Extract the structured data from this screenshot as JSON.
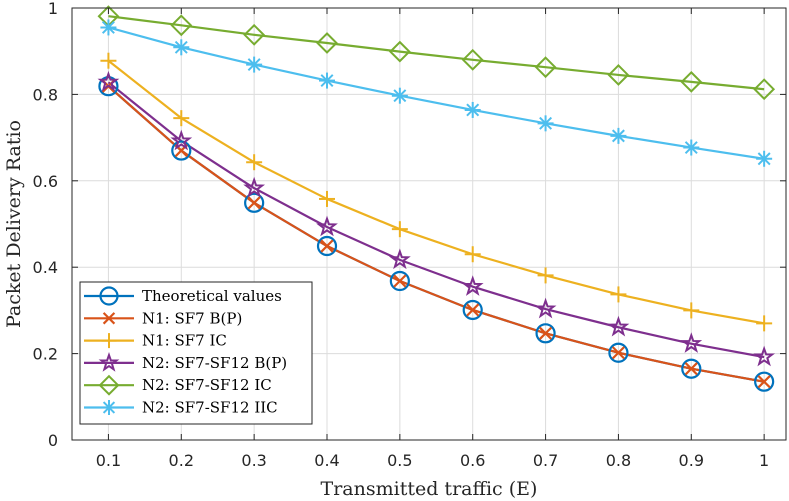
{
  "chart_data": {
    "type": "line",
    "title": "",
    "xlabel": "Transmitted traffic (E)",
    "ylabel": "Packet Delivery Ratio",
    "xlim": [
      0.05,
      1.03
    ],
    "ylim": [
      0,
      1
    ],
    "xticks": [
      0.1,
      0.2,
      0.3,
      0.4,
      0.5,
      0.6,
      0.7,
      0.8,
      0.9,
      1
    ],
    "xtick_labels": [
      "0.1",
      "0.2",
      "0.3",
      "0.4",
      "0.5",
      "0.6",
      "0.7",
      "0.8",
      "0.9",
      "1"
    ],
    "yticks": [
      0,
      0.2,
      0.4,
      0.6,
      0.8,
      1
    ],
    "ytick_labels": [
      "0",
      "0.2",
      "0.4",
      "0.6",
      "0.8",
      "1"
    ],
    "grid": true,
    "legend_position": "bottom-left",
    "x": [
      0.1,
      0.2,
      0.3,
      0.4,
      0.5,
      0.6,
      0.7,
      0.8,
      0.9,
      1.0
    ],
    "series": [
      {
        "name": "Theoretical values",
        "marker": "circle",
        "color": "#0072BD",
        "values": [
          0.819,
          0.67,
          0.549,
          0.449,
          0.368,
          0.301,
          0.247,
          0.202,
          0.165,
          0.135
        ]
      },
      {
        "name": "N1:  SF7 B(P)",
        "marker": "x",
        "color": "#D95319",
        "values": [
          0.819,
          0.67,
          0.549,
          0.449,
          0.368,
          0.301,
          0.247,
          0.202,
          0.165,
          0.135
        ]
      },
      {
        "name": "N1:  SF7 IC",
        "marker": "plus",
        "color": "#EDB120",
        "values": [
          0.878,
          0.745,
          0.643,
          0.558,
          0.488,
          0.43,
          0.381,
          0.337,
          0.3,
          0.27
        ]
      },
      {
        "name": "N2:  SF7-SF12 B(P)",
        "marker": "star",
        "color": "#7E2F8E",
        "values": [
          0.828,
          0.692,
          0.583,
          0.493,
          0.417,
          0.355,
          0.303,
          0.261,
          0.223,
          0.192
        ]
      },
      {
        "name": "N2:  SF7-SF12 IC",
        "marker": "diamond",
        "color": "#77AC30",
        "values": [
          0.981,
          0.96,
          0.938,
          0.919,
          0.899,
          0.88,
          0.863,
          0.845,
          0.829,
          0.812
        ]
      },
      {
        "name": "N2:  SF7-SF12 IIC",
        "marker": "asterisk",
        "color": "#4DBEEE",
        "values": [
          0.955,
          0.909,
          0.869,
          0.832,
          0.797,
          0.764,
          0.733,
          0.704,
          0.677,
          0.651
        ]
      }
    ]
  }
}
